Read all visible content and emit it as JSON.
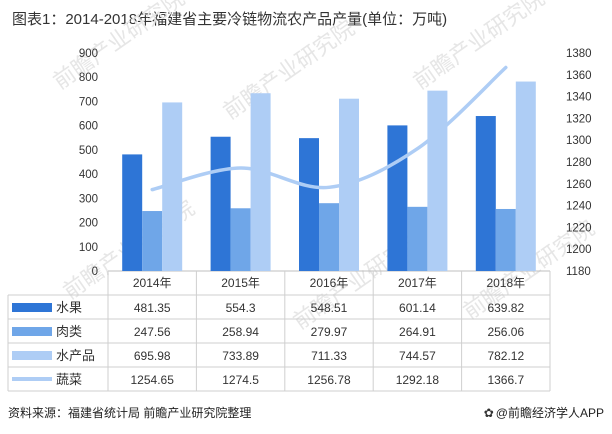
{
  "title": "图表1：2014-2018年福建省主要冷链物流农产品产量(单位：万吨)",
  "source": "资料来源：福建省统计局 前瞻产业研究院整理",
  "credit": "@前瞻经济学人APP",
  "watermark": "前瞻产业研究院",
  "colors": {
    "水果": "#2e75d6",
    "肉类": "#6fa6e8",
    "水产品": "#aecdf5",
    "蔬菜": "#aecdf5"
  },
  "chart_data": {
    "type": "bar",
    "categories": [
      "2014年",
      "2015年",
      "2016年",
      "2017年",
      "2018年"
    ],
    "series": [
      {
        "name": "水果",
        "type": "bar",
        "axis": "left",
        "values": [
          481.35,
          554.3,
          548.51,
          601.14,
          639.82
        ],
        "labels": [
          "481.35",
          "554.3",
          "548.51",
          "601.14",
          "639.82"
        ]
      },
      {
        "name": "肉类",
        "type": "bar",
        "axis": "left",
        "values": [
          247.56,
          258.94,
          279.97,
          264.91,
          256.06
        ],
        "labels": [
          "247.56",
          "258.94",
          "279.97",
          "264.91",
          "256.06"
        ]
      },
      {
        "name": "水产品",
        "type": "bar",
        "axis": "left",
        "values": [
          695.98,
          733.89,
          711.33,
          744.57,
          782.12
        ],
        "labels": [
          "695.98",
          "733.89",
          "711.33",
          "744.57",
          "782.12"
        ]
      },
      {
        "name": "蔬菜",
        "type": "line",
        "axis": "right",
        "values": [
          1254.65,
          1274.5,
          1256.78,
          1292.18,
          1366.7
        ],
        "labels": [
          "1254.65",
          "1274.5",
          "1256.78",
          "1292.18",
          "1366.7"
        ]
      }
    ],
    "y_left": {
      "range": [
        0,
        900
      ],
      "ticks": [
        "0",
        "50",
        "100",
        "150",
        "200",
        "250",
        "300",
        "350",
        "400",
        "450",
        "500",
        "550",
        "600",
        "650",
        "700",
        "750",
        "800",
        "850",
        "900"
      ]
    },
    "y_right": {
      "range": [
        1180,
        1380
      ],
      "ticks": [
        "1180",
        "1200",
        "1220",
        "1240",
        "1260",
        "1280",
        "1300",
        "1320",
        "1340",
        "1360",
        "1380"
      ]
    },
    "grid": false,
    "legend": "data-table"
  }
}
